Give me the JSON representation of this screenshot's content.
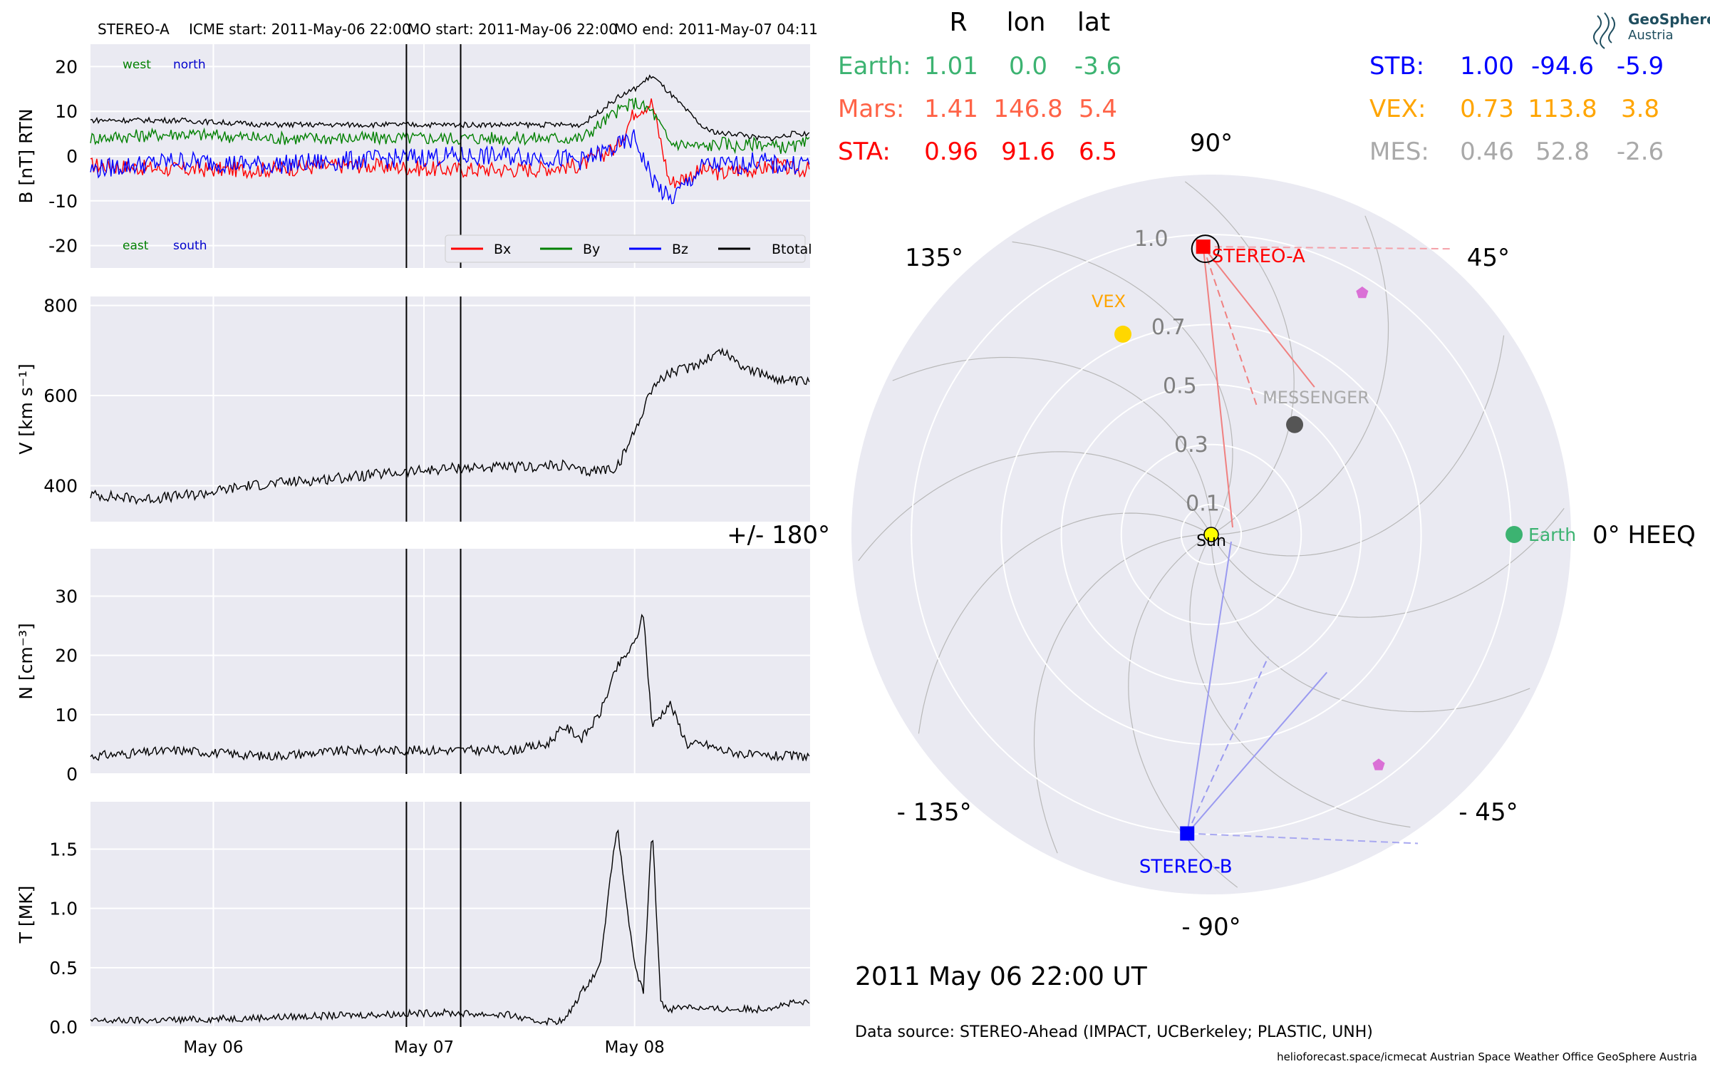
{
  "header": {
    "spacecraft": "STEREO-A",
    "icme_start": "ICME start: 2011-May-06 22:00",
    "mo_start": "MO start: 2011-May-06 22:00",
    "mo_end": "MO end: 2011-May-07 04:11"
  },
  "logo": {
    "line1": "GeoSphere",
    "line2": "Austria"
  },
  "timestamp": "2011 May 06  22:00 UT",
  "data_source": "Data source: STEREO-Ahead (IMPACT, UCBerkeley; PLASTIC, UNH)",
  "credits": "helioforecast.space/icmecat   Austrian Space Weather Office   GeoSphere Austria",
  "positions_table": {
    "columns": [
      "R",
      "lon",
      "lat"
    ],
    "rows_left": [
      {
        "name": "Earth:",
        "R": "1.01",
        "lon": "0.0",
        "lat": "-3.6",
        "color": "#3cb371"
      },
      {
        "name": "Mars:",
        "R": "1.41",
        "lon": "146.8",
        "lat": "5.4",
        "color": "#ff6347"
      },
      {
        "name": "STA:",
        "R": "0.96",
        "lon": "91.6",
        "lat": "6.5",
        "color": "#ff0000"
      }
    ],
    "rows_right": [
      {
        "name": "STB:",
        "R": "1.00",
        "lon": "-94.6",
        "lat": "-5.9",
        "color": "#0000ff"
      },
      {
        "name": "VEX:",
        "R": "0.73",
        "lon": "113.8",
        "lat": "3.8",
        "color": "#ffa500"
      },
      {
        "name": "MES:",
        "R": "0.46",
        "lon": "52.8",
        "lat": "-2.6",
        "color": "#a9a9a9"
      }
    ]
  },
  "chart_data": [
    {
      "type": "line",
      "panel": "magnetic-field",
      "ylabel": "B [nT] RTN",
      "ylim": [
        -25,
        25
      ],
      "yticks": [
        -20,
        -10,
        0,
        10,
        20
      ],
      "xlim": [
        "2011-05-05 10:00",
        "2011-05-08 20:00"
      ],
      "xticks": [
        "May 06",
        "May 07",
        "May 08"
      ],
      "annotations": {
        "top_left": [
          "west",
          "north"
        ],
        "bottom_left": [
          "east",
          "south"
        ]
      },
      "annotation_colors": [
        "#008000",
        "#0000cc"
      ],
      "legend": "bottom-right",
      "event_lines": [
        "2011-05-06 22:00",
        "2011-05-07 04:11"
      ],
      "series": [
        {
          "name": "Bx",
          "color": "#ff0000",
          "x_hours": [
            0,
            10,
            20,
            30,
            40,
            50,
            56,
            60,
            62,
            64,
            66,
            70,
            72,
            74,
            76,
            78,
            80,
            82
          ],
          "y": [
            -2,
            -3,
            -3,
            -2,
            -3,
            -3,
            -2,
            2,
            10,
            12,
            -6,
            -3,
            -4,
            -3,
            -3,
            -2,
            -3,
            -3
          ]
        },
        {
          "name": "By",
          "color": "#008000",
          "x_hours": [
            0,
            10,
            20,
            30,
            40,
            50,
            56,
            60,
            62,
            64,
            66,
            70,
            72,
            74,
            76,
            78,
            80,
            82
          ],
          "y": [
            4,
            5,
            4,
            4,
            4,
            4,
            4,
            10,
            12,
            10,
            3,
            2,
            3,
            2,
            3,
            2,
            2,
            3
          ]
        },
        {
          "name": "Bz",
          "color": "#0000ff",
          "x_hours": [
            0,
            10,
            20,
            30,
            40,
            50,
            56,
            60,
            62,
            64,
            66,
            70,
            72,
            74,
            76,
            78,
            80,
            82
          ],
          "y": [
            -3,
            -1,
            -2,
            -1,
            0,
            0,
            -1,
            2,
            4,
            -5,
            -10,
            -2,
            -2,
            -2,
            -1,
            -2,
            -2,
            -1
          ]
        },
        {
          "name": "Btotal",
          "color": "#000000",
          "x_hours": [
            0,
            10,
            20,
            30,
            40,
            50,
            56,
            60,
            62,
            64,
            66,
            70,
            72,
            74,
            76,
            78,
            80,
            82
          ],
          "y": [
            8,
            8,
            7,
            7,
            7,
            7,
            7,
            13,
            15,
            18,
            14,
            6,
            5,
            5,
            4,
            4,
            5,
            5
          ]
        }
      ]
    },
    {
      "type": "line",
      "panel": "velocity",
      "ylabel": "V [km s⁻¹]",
      "ylim": [
        320,
        820
      ],
      "yticks": [
        400,
        600,
        800
      ],
      "series": [
        {
          "name": "",
          "color": "#000000",
          "x_hours": [
            0,
            6,
            12,
            18,
            24,
            30,
            36,
            42,
            48,
            54,
            56,
            60,
            62,
            64,
            66,
            68,
            70,
            72,
            74,
            76,
            78,
            80,
            82
          ],
          "y": [
            380,
            370,
            380,
            400,
            410,
            420,
            430,
            440,
            440,
            445,
            430,
            440,
            520,
            620,
            650,
            660,
            680,
            700,
            670,
            650,
            640,
            630,
            630
          ]
        }
      ]
    },
    {
      "type": "line",
      "panel": "density",
      "ylabel": "N [cm⁻³]",
      "ylim": [
        0,
        38
      ],
      "yticks": [
        0,
        10,
        20,
        30
      ],
      "series": [
        {
          "name": "",
          "color": "#000000",
          "x_hours": [
            0,
            10,
            20,
            30,
            40,
            48,
            52,
            54,
            56,
            58,
            60,
            62,
            63,
            64,
            66,
            68,
            70,
            72,
            76,
            80,
            82
          ],
          "y": [
            3,
            4,
            3,
            4,
            4,
            4,
            5,
            8,
            6,
            10,
            18,
            22,
            27,
            8,
            12,
            5,
            5,
            4,
            3,
            3,
            3
          ]
        }
      ]
    },
    {
      "type": "line",
      "panel": "temperature",
      "ylabel": "T [MK]",
      "ylim": [
        0,
        1.9
      ],
      "yticks": [
        0.0,
        0.5,
        1.0,
        1.5
      ],
      "series": [
        {
          "name": "",
          "color": "#000000",
          "x_hours": [
            0,
            10,
            20,
            30,
            40,
            48,
            50,
            54,
            56,
            58,
            60,
            62,
            63,
            64,
            65,
            66,
            68,
            70,
            72,
            76,
            80,
            82
          ],
          "y": [
            0.05,
            0.06,
            0.08,
            0.1,
            0.12,
            0.1,
            0.05,
            0.05,
            0.3,
            0.5,
            1.7,
            0.5,
            0.3,
            1.7,
            0.2,
            0.15,
            0.18,
            0.15,
            0.15,
            0.15,
            0.2,
            0.2
          ]
        }
      ]
    },
    {
      "type": "scatter",
      "panel": "polar-positions",
      "coordinate_system": "HEEQ",
      "angle_labels": [
        "0° HEEQ",
        "45°",
        "90°",
        "135°",
        "+/- 180°",
        "- 135°",
        "- 90°",
        "- 45°"
      ],
      "radial_ticks": [
        "0.1",
        "0.3",
        "0.5",
        "0.7",
        "1.0"
      ],
      "radial_values": [
        0.1,
        0.3,
        0.5,
        0.7,
        1.0
      ],
      "rmax": 1.2,
      "bodies": [
        {
          "name": "Sun",
          "r": 0.0,
          "lon": 0.0,
          "color": "#ffff00",
          "marker": "circle"
        },
        {
          "name": "Earth",
          "r": 1.01,
          "lon": 0.0,
          "color": "#3cb371",
          "marker": "circle"
        },
        {
          "name": "STEREO-A",
          "r": 0.96,
          "lon": 91.6,
          "color": "#ff0000",
          "marker": "square"
        },
        {
          "name": "STEREO-B",
          "r": 1.0,
          "lon": -94.6,
          "color": "#0000ff",
          "marker": "square"
        },
        {
          "name": "VEX",
          "r": 0.73,
          "lon": 113.8,
          "color": "#ffd700",
          "marker": "circle",
          "label_color": "#ffa500"
        },
        {
          "name": "MESSENGER",
          "r": 0.46,
          "lon": 52.8,
          "color": "#555555",
          "marker": "circle",
          "label_color": "#a9a9a9"
        },
        {
          "name": "",
          "r": 0.95,
          "lon": 58,
          "color": "#da70d6",
          "marker": "pentagon"
        },
        {
          "name": "",
          "r": 0.95,
          "lon": -54,
          "color": "#da70d6",
          "marker": "pentagon"
        }
      ]
    }
  ]
}
